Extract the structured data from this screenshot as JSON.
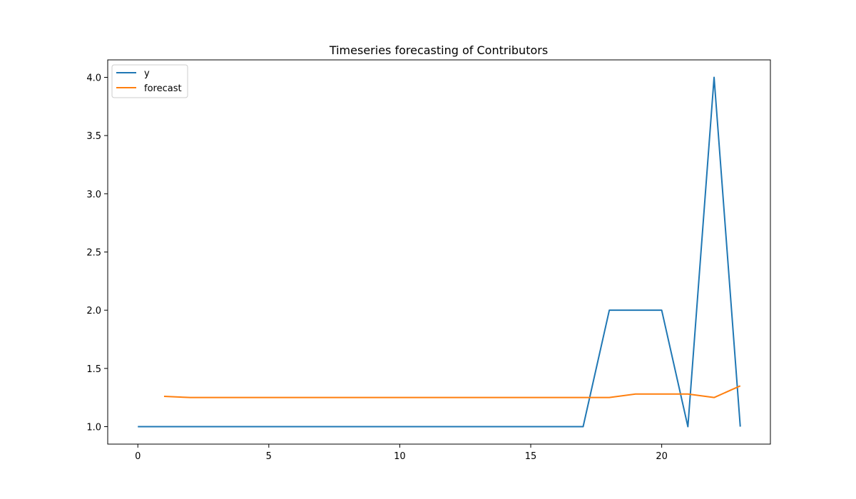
{
  "chart_data": {
    "type": "line",
    "title": "Timeseries forecasting of Contributors",
    "xlim": [
      -1.15,
      24.15
    ],
    "ylim": [
      0.85,
      4.15
    ],
    "x_ticks": [
      0,
      5,
      10,
      15,
      20
    ],
    "y_ticks": [
      1.0,
      1.5,
      2.0,
      2.5,
      3.0,
      3.5,
      4.0
    ],
    "y_tick_labels": [
      "1.0",
      "1.5",
      "2.0",
      "2.5",
      "3.0",
      "3.5",
      "4.0"
    ],
    "grid": false,
    "legend_position": "top-left",
    "series": [
      {
        "name": "y",
        "color": "#1f77b4",
        "x": [
          0,
          1,
          2,
          3,
          4,
          5,
          6,
          7,
          8,
          9,
          10,
          11,
          12,
          13,
          14,
          15,
          16,
          17,
          18,
          19,
          20,
          21,
          22,
          23
        ],
        "values": [
          1,
          1,
          1,
          1,
          1,
          1,
          1,
          1,
          1,
          1,
          1,
          1,
          1,
          1,
          1,
          1,
          1,
          1,
          2,
          2,
          2,
          1,
          4,
          1
        ]
      },
      {
        "name": "forecast",
        "color": "#ff7f0e",
        "x": [
          1,
          2,
          3,
          4,
          5,
          6,
          7,
          8,
          9,
          10,
          11,
          12,
          13,
          14,
          15,
          16,
          17,
          18,
          19,
          20,
          21,
          22,
          23
        ],
        "values": [
          1.26,
          1.25,
          1.25,
          1.25,
          1.25,
          1.25,
          1.25,
          1.25,
          1.25,
          1.25,
          1.25,
          1.25,
          1.25,
          1.25,
          1.25,
          1.25,
          1.25,
          1.25,
          1.28,
          1.28,
          1.28,
          1.25,
          1.35
        ]
      }
    ]
  }
}
